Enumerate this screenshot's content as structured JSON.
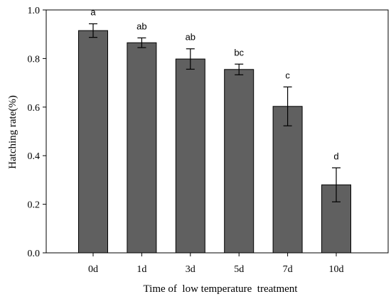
{
  "chart_data": {
    "type": "bar",
    "title": "",
    "xlabel": "Time of  low temperature  treatment",
    "ylabel": "Hatching rate(%)",
    "categories": [
      "0d",
      "1d",
      "3d",
      "5d",
      "7d",
      "10d"
    ],
    "values": [
      0.915,
      0.865,
      0.798,
      0.755,
      0.603,
      0.28
    ],
    "errors": [
      0.028,
      0.02,
      0.042,
      0.022,
      0.08,
      0.07
    ],
    "significance": [
      "a",
      "ab",
      "ab",
      "bc",
      "c",
      "d"
    ],
    "ylim": [
      0,
      1.0
    ],
    "yticks": [
      "0.0",
      "0.2",
      "0.4",
      "0.6",
      "0.8",
      "1.0"
    ],
    "bar_color": "#606060",
    "grid": false
  }
}
